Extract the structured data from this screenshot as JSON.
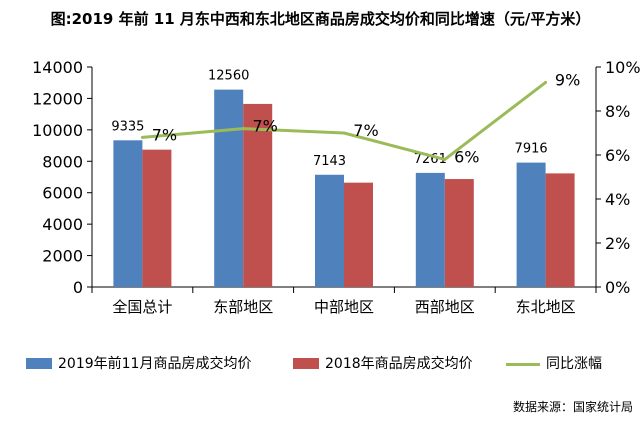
{
  "chart_data": {
    "type": "bar",
    "title": "图:2019 年前 11 月东中西和东北地区商品房成交均价和同比增速（元/平方米）",
    "categories": [
      "全国总计",
      "东部地区",
      "中部地区",
      "西部地区",
      "东北地区"
    ],
    "series": [
      {
        "name": "2019年前11月商品房成交均价",
        "type": "bar",
        "axis": "left",
        "color": "#4f81bd",
        "values": [
          9335,
          12560,
          7143,
          7261,
          7916
        ]
      },
      {
        "name": "2018年商品房成交均价",
        "type": "bar",
        "axis": "left",
        "color": "#c0504d",
        "values": [
          8740,
          11650,
          6640,
          6870,
          7230
        ]
      },
      {
        "name": "同比涨幅",
        "type": "line",
        "axis": "right",
        "color": "#9bbb59",
        "values": [
          6.8,
          7.2,
          7.0,
          5.8,
          9.3
        ]
      }
    ],
    "bar_value_labels": [
      "9335",
      "12560",
      "7143",
      "7261",
      "7916"
    ],
    "line_value_labels": [
      "7%",
      "7%",
      "7%",
      "6%",
      "9%"
    ],
    "y_left": {
      "min": 0,
      "max": 14000,
      "ticks": [
        "0",
        "2000",
        "4000",
        "6000",
        "8000",
        "10000",
        "12000",
        "14000"
      ]
    },
    "y_right": {
      "min": 0,
      "max": 10,
      "ticks": [
        "0%",
        "2%",
        "4%",
        "6%",
        "8%",
        "10%"
      ]
    },
    "grid": false,
    "legend_position": "bottom"
  },
  "legend": {
    "items": [
      {
        "label": "2019年前11月商品房成交均价",
        "kind": "box",
        "color": "#4f81bd"
      },
      {
        "label": "2018年商品房成交均价",
        "kind": "box",
        "color": "#c0504d"
      },
      {
        "label": "同比涨幅",
        "kind": "line",
        "color": "#9bbb59"
      }
    ]
  },
  "source": "数据来源：国家统计局"
}
